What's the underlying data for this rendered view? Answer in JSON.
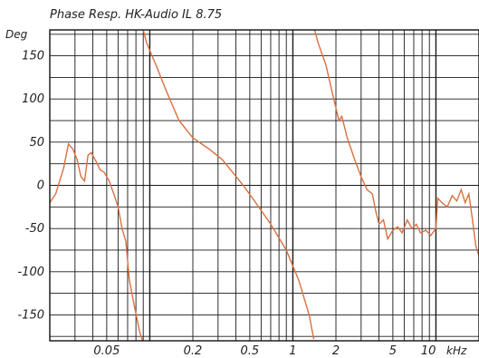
{
  "chart_data": {
    "type": "line",
    "title": "Phase Resp. HK-Audio IL 8.75",
    "ylabel": "Deg",
    "xscale": "log",
    "xlim": [
      0.02,
      20
    ],
    "ylim": [
      -180,
      180
    ],
    "grid": true,
    "line_color": "#d9703f",
    "y_ticks": [
      150,
      100,
      50,
      0,
      -50,
      -100,
      -150
    ],
    "y_tick_labels": [
      "150",
      "100",
      "50",
      "0",
      "-50",
      "-100",
      "-150"
    ],
    "x_tick_values": [
      0.05,
      0.2,
      0.5,
      1,
      2,
      5,
      10
    ],
    "x_tick_labels": [
      "0.05",
      "0.2",
      "0.5",
      "1",
      "2",
      "5",
      "10"
    ],
    "x_unit": "kHz",
    "series": [
      {
        "values_note": "phase in degrees vs frequency in kHz",
        "points": [
          [
            0.02,
            -20
          ],
          [
            0.022,
            -10
          ],
          [
            0.025,
            20
          ],
          [
            0.027,
            48
          ],
          [
            0.029,
            42
          ],
          [
            0.031,
            30
          ],
          [
            0.033,
            10
          ],
          [
            0.035,
            5
          ],
          [
            0.037,
            35
          ],
          [
            0.039,
            38
          ],
          [
            0.042,
            28
          ],
          [
            0.045,
            18
          ],
          [
            0.048,
            15
          ],
          [
            0.052,
            5
          ],
          [
            0.056,
            -10
          ],
          [
            0.06,
            -25
          ],
          [
            0.064,
            -50
          ],
          [
            0.068,
            -65
          ],
          [
            0.072,
            -110
          ],
          [
            0.078,
            -140
          ],
          [
            0.085,
            -170
          ],
          [
            0.089,
            -180
          ],
          [
            0.09,
            180
          ],
          [
            0.095,
            165
          ],
          [
            0.11,
            140
          ],
          [
            0.13,
            110
          ],
          [
            0.16,
            75
          ],
          [
            0.2,
            55
          ],
          [
            0.26,
            42
          ],
          [
            0.32,
            30
          ],
          [
            0.38,
            15
          ],
          [
            0.45,
            0
          ],
          [
            0.55,
            -20
          ],
          [
            0.7,
            -45
          ],
          [
            0.9,
            -75
          ],
          [
            1.1,
            -110
          ],
          [
            1.3,
            -150
          ],
          [
            1.4,
            -178
          ],
          [
            1.42,
            180
          ],
          [
            1.5,
            165
          ],
          [
            1.7,
            140
          ],
          [
            1.9,
            105
          ],
          [
            2.1,
            75
          ],
          [
            2.2,
            80
          ],
          [
            2.4,
            55
          ],
          [
            2.7,
            30
          ],
          [
            3.0,
            10
          ],
          [
            3.3,
            -5
          ],
          [
            3.6,
            -10
          ],
          [
            3.8,
            -30
          ],
          [
            4.0,
            -45
          ],
          [
            4.3,
            -40
          ],
          [
            4.6,
            -62
          ],
          [
            5.0,
            -52
          ],
          [
            5.4,
            -48
          ],
          [
            5.8,
            -55
          ],
          [
            6.3,
            -40
          ],
          [
            6.8,
            -50
          ],
          [
            7.3,
            -45
          ],
          [
            7.8,
            -55
          ],
          [
            8.5,
            -52
          ],
          [
            9.2,
            -58
          ],
          [
            10.0,
            -50
          ],
          [
            10.3,
            -15
          ],
          [
            11,
            -20
          ],
          [
            12,
            -25
          ],
          [
            13,
            -12
          ],
          [
            14,
            -18
          ],
          [
            15,
            -5
          ],
          [
            16,
            -20
          ],
          [
            17,
            -10
          ],
          [
            18,
            -40
          ],
          [
            19,
            -70
          ],
          [
            20,
            -82
          ]
        ]
      }
    ]
  }
}
